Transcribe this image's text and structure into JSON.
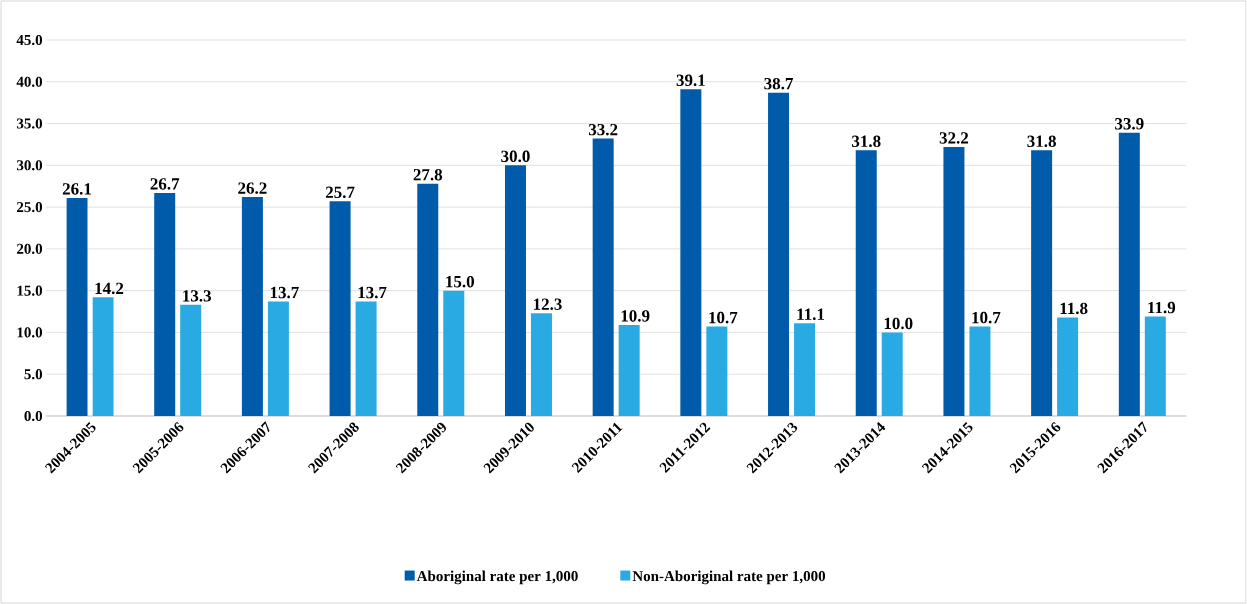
{
  "chart_data": {
    "type": "bar",
    "categories": [
      "2004-2005",
      "2005-2006",
      "2006-2007",
      "2007-2008",
      "2008-2009",
      "2009-2010",
      "2010-2011",
      "2011-2012",
      "2012-2013",
      "2013-2014",
      "2014-2015",
      "2015-2016",
      "2016-2017"
    ],
    "series": [
      {
        "name": "Aboriginal rate per 1,000",
        "color": "#005baa",
        "values": [
          26.1,
          26.7,
          26.2,
          25.7,
          27.8,
          30.0,
          33.2,
          39.1,
          38.7,
          31.8,
          32.2,
          31.8,
          33.9
        ],
        "value_labels": [
          "26.1",
          "26.7",
          "26.2",
          "25.7",
          "27.8",
          "30.0",
          "33.2",
          "39.1",
          "38.7",
          "31.8",
          "32.2",
          "31.8",
          "33.9"
        ]
      },
      {
        "name": "Non-Aboriginal rate per 1,000",
        "color": "#29aae2",
        "values": [
          14.2,
          13.3,
          13.7,
          13.7,
          15.0,
          12.3,
          10.9,
          10.7,
          11.1,
          10.0,
          10.7,
          11.8,
          11.9
        ],
        "value_labels": [
          "14.2",
          "13.3",
          "13.7",
          "13.7",
          "15.0",
          "12.3",
          "10.9",
          "10.7",
          "11.1",
          "10.0",
          "10.7",
          "11.8",
          "11.9"
        ]
      }
    ],
    "ylim": [
      0,
      45
    ],
    "yticks": [
      {
        "value": 0,
        "label": "0.0"
      },
      {
        "value": 5,
        "label": "5.0"
      },
      {
        "value": 10,
        "label": "10.0"
      },
      {
        "value": 15,
        "label": "15.0"
      },
      {
        "value": 20,
        "label": "20.0"
      },
      {
        "value": 25,
        "label": "25.0"
      },
      {
        "value": 30,
        "label": "30.0"
      },
      {
        "value": 35,
        "label": "35.0"
      },
      {
        "value": 40,
        "label": "40.0"
      },
      {
        "value": 45,
        "label": "45.0"
      }
    ],
    "grid": "y",
    "legend": "bottom"
  }
}
